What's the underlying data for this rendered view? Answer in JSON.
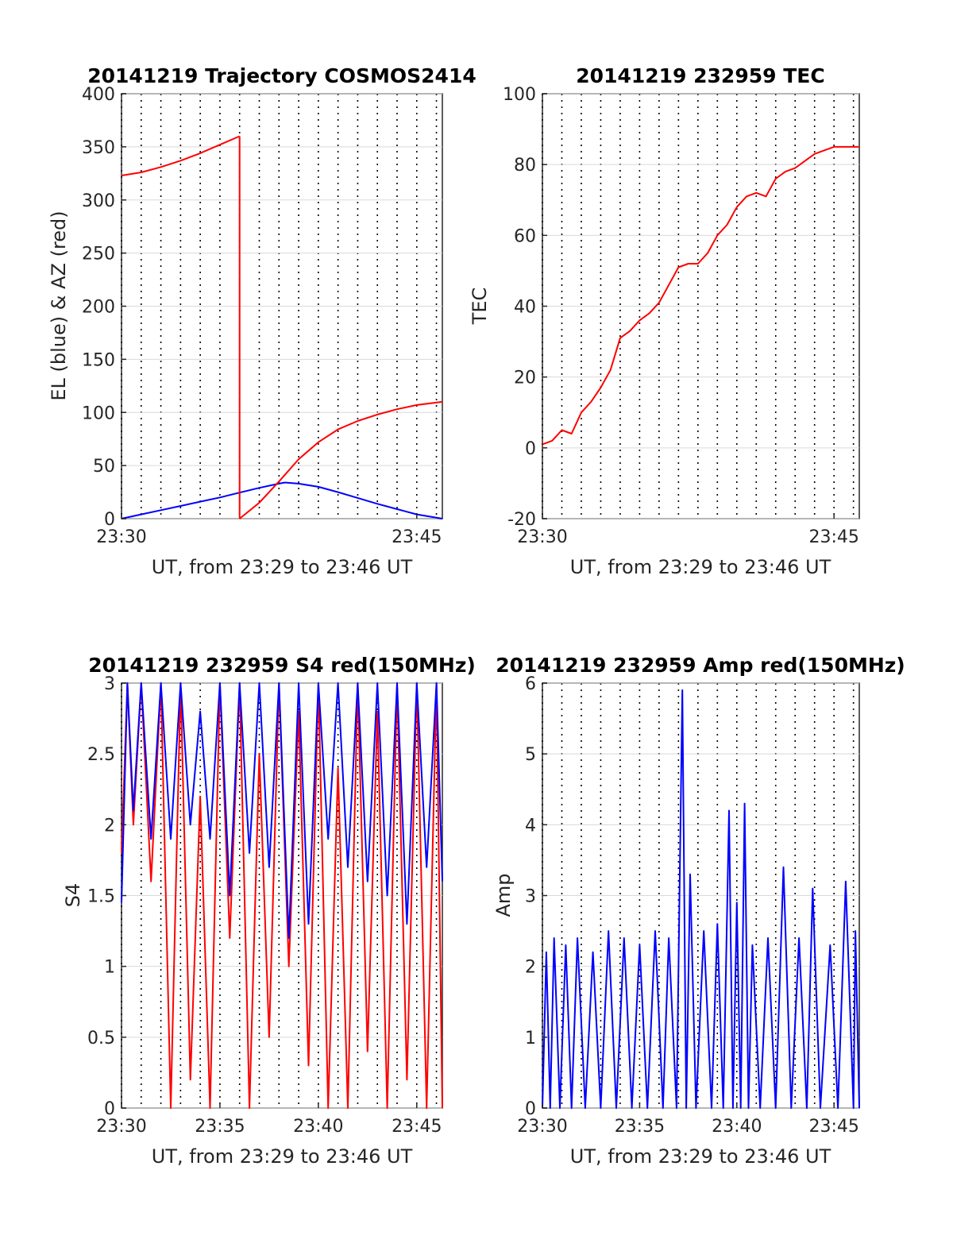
{
  "colors": {
    "el": "#0000ff",
    "az": "#ff0000",
    "tec": "#ff0000",
    "s4_red": "#ff0000",
    "s4_blue": "#0000ff",
    "amp": "#0000ff",
    "grid": "#d9d9d9",
    "axis": "#262626"
  },
  "chart_data": [
    {
      "id": "trajectory",
      "type": "line",
      "title": "20141219 Trajectory COSMOS2414",
      "xlabel": "UT, from 23:29 to 23:46 UT",
      "ylabel": "EL (blue) & AZ (red)",
      "xlim": [
        0,
        16.3
      ],
      "ylim": [
        0,
        400
      ],
      "xticks": [
        {
          "v": 0,
          "label": "23:30"
        },
        {
          "v": 15,
          "label": "23:45"
        }
      ],
      "yticks": [
        0,
        50,
        100,
        150,
        200,
        250,
        300,
        350,
        400
      ],
      "grid": true,
      "series": [
        {
          "name": "EL",
          "color": "blue",
          "values": [
            [
              0,
              0
            ],
            [
              1,
              4
            ],
            [
              2,
              8
            ],
            [
              3,
              12
            ],
            [
              4,
              16
            ],
            [
              5,
              20
            ],
            [
              6,
              24.5
            ],
            [
              7,
              29
            ],
            [
              8,
              33
            ],
            [
              8.3,
              34
            ],
            [
              9,
              33
            ],
            [
              10,
              30
            ],
            [
              11,
              25
            ],
            [
              12,
              19.5
            ],
            [
              13,
              14
            ],
            [
              14,
              9
            ],
            [
              15,
              4
            ],
            [
              16.3,
              0
            ]
          ]
        },
        {
          "name": "AZ",
          "color": "red",
          "segments": [
            [
              [
                0,
                323
              ],
              [
                1,
                326
              ],
              [
                2,
                331
              ],
              [
                3,
                337
              ],
              [
                4,
                344
              ],
              [
                5,
                352
              ],
              [
                6,
                360
              ]
            ],
            [
              [
                6,
                0
              ],
              [
                7,
                15
              ],
              [
                8,
                35
              ],
              [
                9,
                56
              ],
              [
                10,
                72
              ],
              [
                11,
                84
              ],
              [
                12,
                92
              ],
              [
                13,
                98
              ],
              [
                14,
                103
              ],
              [
                15,
                107
              ],
              [
                16.3,
                110
              ]
            ]
          ]
        }
      ]
    },
    {
      "id": "tec",
      "type": "line",
      "title": "20141219 232959 TEC",
      "xlabel": "UT, from 23:29 to 23:46 UT",
      "ylabel": "TEC",
      "xlim": [
        0,
        16.3
      ],
      "ylim": [
        -20,
        100
      ],
      "xticks": [
        {
          "v": 0,
          "label": "23:30"
        },
        {
          "v": 15,
          "label": "23:45"
        }
      ],
      "yticks": [
        -20,
        0,
        20,
        40,
        60,
        80,
        100
      ],
      "grid": true,
      "series": [
        {
          "name": "TEC",
          "color": "red",
          "values": [
            [
              0,
              1
            ],
            [
              0.5,
              2
            ],
            [
              1,
              5
            ],
            [
              1.5,
              4
            ],
            [
              2,
              10
            ],
            [
              2.5,
              13
            ],
            [
              3,
              17
            ],
            [
              3.5,
              22
            ],
            [
              4,
              31
            ],
            [
              4.5,
              33
            ],
            [
              5,
              36
            ],
            [
              5.5,
              38
            ],
            [
              6,
              41
            ],
            [
              6.5,
              46
            ],
            [
              7,
              51
            ],
            [
              7.5,
              52
            ],
            [
              8,
              52
            ],
            [
              8.5,
              55
            ],
            [
              9,
              60
            ],
            [
              9.5,
              63
            ],
            [
              10,
              68
            ],
            [
              10.5,
              71
            ],
            [
              11,
              72
            ],
            [
              11.5,
              71
            ],
            [
              12,
              76
            ],
            [
              12.5,
              78
            ],
            [
              13,
              79
            ],
            [
              13.5,
              81
            ],
            [
              14,
              83
            ],
            [
              14.5,
              84
            ],
            [
              15,
              85
            ],
            [
              16.3,
              85
            ]
          ]
        }
      ]
    },
    {
      "id": "s4",
      "type": "line",
      "title": "20141219 232959 S4 red(150MHz)",
      "xlabel": "UT, from 23:29 to 23:46 UT",
      "ylabel": "S4",
      "xlim": [
        0,
        16.3
      ],
      "ylim": [
        0,
        3
      ],
      "xticks": [
        {
          "v": 0,
          "label": "23:30"
        },
        {
          "v": 5,
          "label": "23:35"
        },
        {
          "v": 10,
          "label": "23:40"
        },
        {
          "v": 15,
          "label": "23:45"
        }
      ],
      "yticks": [
        {
          "v": 0,
          "label": "0"
        },
        {
          "v": 0.5,
          "label": "0.5"
        },
        {
          "v": 1,
          "label": "1"
        },
        {
          "v": 1.5,
          "label": "1.5"
        },
        {
          "v": 2,
          "label": "2"
        },
        {
          "v": 2.5,
          "label": "2.5"
        },
        {
          "v": 3,
          "label": "3"
        }
      ],
      "grid": true,
      "series": [
        {
          "name": "S4 red",
          "color": "red",
          "values": [
            [
              0,
              1.8
            ],
            [
              0.3,
              3
            ],
            [
              0.6,
              2
            ],
            [
              1,
              3
            ],
            [
              1.5,
              1.6
            ],
            [
              2,
              3
            ],
            [
              2.5,
              0
            ],
            [
              3,
              3
            ],
            [
              3.5,
              0.2
            ],
            [
              4,
              2.2
            ],
            [
              4.5,
              0
            ],
            [
              5,
              3
            ],
            [
              5.5,
              1.2
            ],
            [
              6,
              3
            ],
            [
              6.5,
              0
            ],
            [
              7,
              2.5
            ],
            [
              7.5,
              0.5
            ],
            [
              8,
              3
            ],
            [
              8.5,
              1
            ],
            [
              9,
              2.8
            ],
            [
              9.5,
              0.3
            ],
            [
              10,
              3
            ],
            [
              10.5,
              0
            ],
            [
              11,
              2.4
            ],
            [
              11.5,
              0
            ],
            [
              12,
              3
            ],
            [
              12.5,
              0.4
            ],
            [
              13,
              2.8
            ],
            [
              13.5,
              0
            ],
            [
              14,
              3
            ],
            [
              14.5,
              0.2
            ],
            [
              15,
              3
            ],
            [
              15.5,
              0
            ],
            [
              16,
              3
            ],
            [
              16.3,
              0
            ]
          ]
        },
        {
          "name": "S4 blue",
          "color": "blue",
          "values": [
            [
              0,
              1.45
            ],
            [
              0.3,
              3
            ],
            [
              0.6,
              2.1
            ],
            [
              1,
              3
            ],
            [
              1.5,
              1.9
            ],
            [
              2,
              3
            ],
            [
              2.5,
              1.9
            ],
            [
              3,
              3
            ],
            [
              3.5,
              2
            ],
            [
              4,
              2.8
            ],
            [
              4.5,
              1.9
            ],
            [
              5,
              3
            ],
            [
              5.5,
              1.5
            ],
            [
              6,
              3
            ],
            [
              6.5,
              1.8
            ],
            [
              7,
              3
            ],
            [
              7.5,
              1.7
            ],
            [
              8,
              3
            ],
            [
              8.5,
              1.2
            ],
            [
              9,
              3
            ],
            [
              9.5,
              1.3
            ],
            [
              10,
              3
            ],
            [
              10.5,
              1.9
            ],
            [
              11,
              3
            ],
            [
              11.5,
              1.7
            ],
            [
              12,
              3
            ],
            [
              12.5,
              1.6
            ],
            [
              13,
              3
            ],
            [
              13.5,
              1.5
            ],
            [
              14,
              3
            ],
            [
              14.5,
              1.3
            ],
            [
              15,
              3
            ],
            [
              15.5,
              1.7
            ],
            [
              16,
              3
            ],
            [
              16.3,
              1.6
            ]
          ]
        }
      ]
    },
    {
      "id": "amp",
      "type": "line",
      "title": "20141219 232959 Amp red(150MHz)",
      "xlabel": "UT, from 23:29 to 23:46 UT",
      "ylabel": "Amp",
      "xlim": [
        0,
        16.3
      ],
      "ylim": [
        0,
        6
      ],
      "xticks": [
        {
          "v": 0,
          "label": "23:30"
        },
        {
          "v": 5,
          "label": "23:35"
        },
        {
          "v": 10,
          "label": "23:40"
        },
        {
          "v": 15,
          "label": "23:45"
        }
      ],
      "yticks": [
        0,
        1,
        2,
        3,
        4,
        5,
        6
      ],
      "grid": true,
      "series": [
        {
          "name": "Amp",
          "color": "blue",
          "values": [
            [
              0,
              0
            ],
            [
              0.2,
              2.2
            ],
            [
              0.4,
              0
            ],
            [
              0.6,
              2.4
            ],
            [
              0.9,
              0
            ],
            [
              1.2,
              2.3
            ],
            [
              1.5,
              0
            ],
            [
              1.8,
              2.4
            ],
            [
              2.2,
              0
            ],
            [
              2.6,
              2.2
            ],
            [
              3,
              0
            ],
            [
              3.4,
              2.5
            ],
            [
              3.8,
              0
            ],
            [
              4.2,
              2.4
            ],
            [
              4.6,
              0
            ],
            [
              5,
              2.3
            ],
            [
              5.4,
              0
            ],
            [
              5.8,
              2.5
            ],
            [
              6.2,
              0
            ],
            [
              6.5,
              2.4
            ],
            [
              6.9,
              0
            ],
            [
              7.2,
              5.9
            ],
            [
              7.4,
              0
            ],
            [
              7.6,
              3.3
            ],
            [
              7.9,
              0
            ],
            [
              8.3,
              2.5
            ],
            [
              8.7,
              0
            ],
            [
              9,
              2.6
            ],
            [
              9.3,
              0
            ],
            [
              9.6,
              4.2
            ],
            [
              9.8,
              0
            ],
            [
              10,
              2.9
            ],
            [
              10.2,
              0
            ],
            [
              10.4,
              4.3
            ],
            [
              10.6,
              0
            ],
            [
              10.8,
              2.3
            ],
            [
              11.2,
              0
            ],
            [
              11.6,
              2.4
            ],
            [
              12,
              0
            ],
            [
              12.4,
              3.4
            ],
            [
              12.8,
              0
            ],
            [
              13.2,
              2.4
            ],
            [
              13.6,
              0
            ],
            [
              13.9,
              3.1
            ],
            [
              14.3,
              0
            ],
            [
              14.8,
              2.3
            ],
            [
              15.2,
              0
            ],
            [
              15.6,
              3.2
            ],
            [
              16,
              0
            ],
            [
              16.1,
              2.5
            ],
            [
              16.3,
              0
            ]
          ]
        }
      ]
    }
  ]
}
